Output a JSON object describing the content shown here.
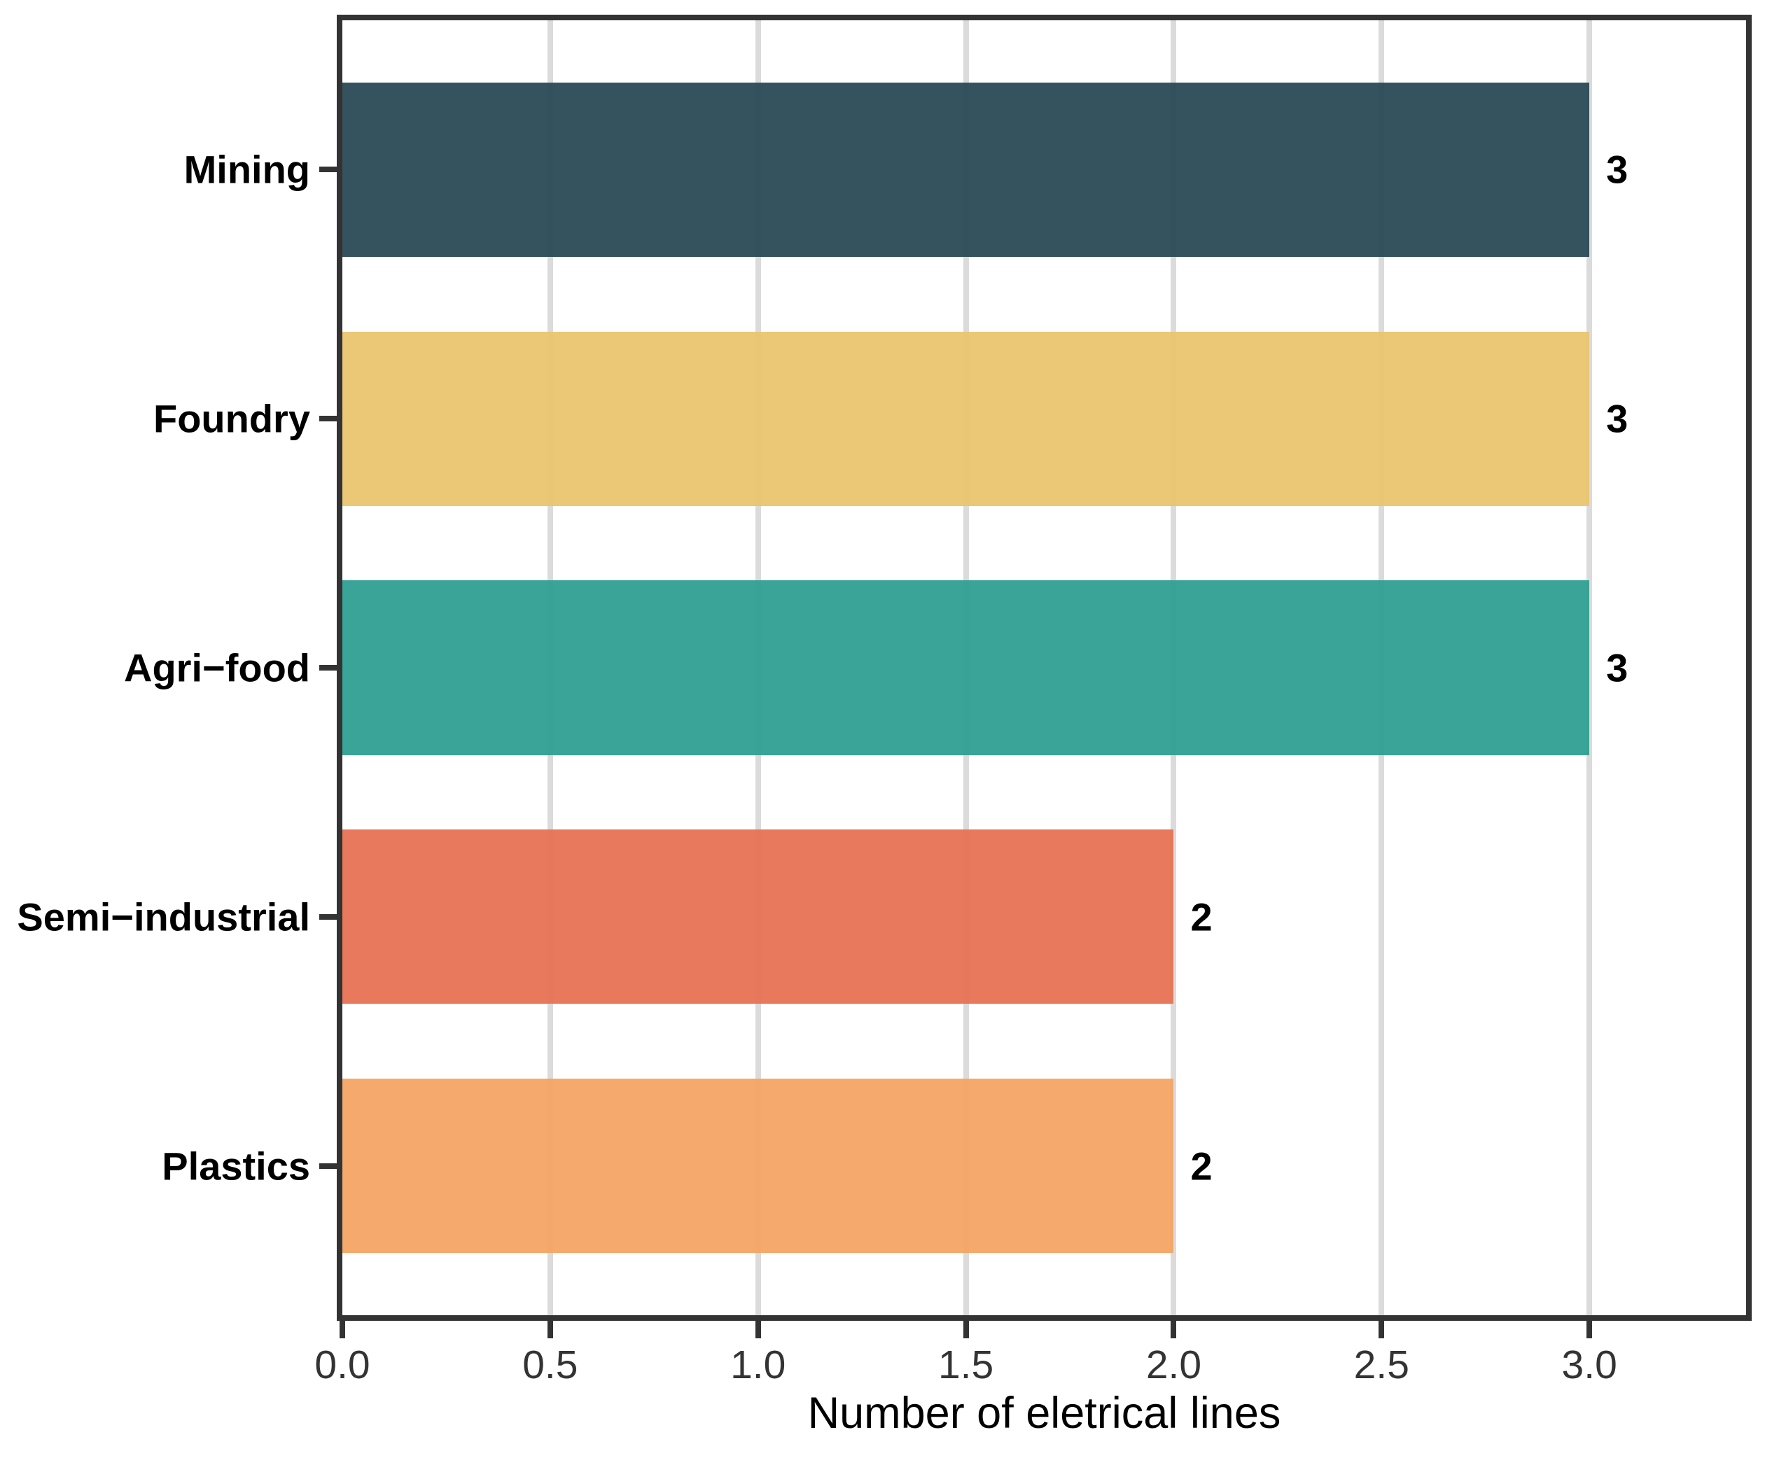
{
  "chart_data": {
    "type": "bar",
    "orientation": "horizontal",
    "title": "",
    "xlabel": "Number of eletrical lines",
    "ylabel": "",
    "categories": [
      "Mining",
      "Foundry",
      "Agri−food",
      "Semi−industrial",
      "Plastics"
    ],
    "values": [
      3,
      3,
      3,
      2,
      2
    ],
    "value_labels": [
      "3",
      "3",
      "3",
      "2",
      "2"
    ],
    "bar_colors": [
      "#264653",
      "#E9C46A",
      "#2A9D8F",
      "#E76F51",
      "#F4A261"
    ],
    "x_ticks": [
      "0.0",
      "0.5",
      "1.0",
      "1.5",
      "2.0",
      "2.5",
      "3.0"
    ],
    "x_tick_values": [
      0,
      0.5,
      1,
      1.5,
      2,
      2.5,
      3
    ],
    "xlim": [
      0,
      3.377
    ],
    "grid": "vertical-major-only",
    "legend": "none",
    "colors": {
      "panel_border": "#333333",
      "gridline": "#DBDBDB",
      "x_tick_label": "#333333",
      "y_axis_label": "#000000",
      "value_label": "#000000",
      "background": "#FFFFFF"
    }
  }
}
